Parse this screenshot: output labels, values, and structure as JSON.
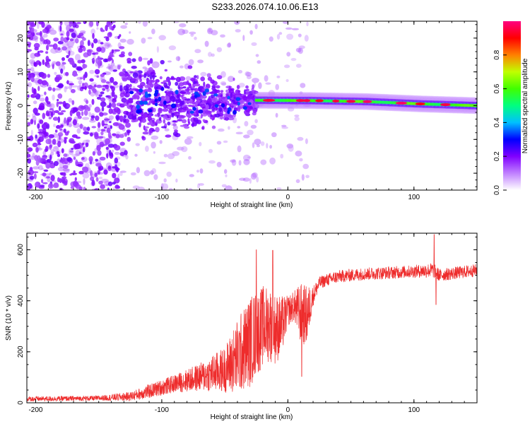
{
  "title": "S233.2026.074.10.06.E13",
  "colors": {
    "snr_line": "#ee2c2c",
    "axis": "#000000",
    "background": "#ffffff"
  },
  "chart_data": [
    {
      "type": "heatmap",
      "name": "spectrogram",
      "xlabel": "Height of straight line (km)",
      "ylabel": "Frequency (Hz)",
      "xlim": [
        -207,
        150
      ],
      "ylim": [
        -25,
        25
      ],
      "xticks": [
        -200,
        -100,
        0,
        100
      ],
      "xtick_labels": [
        "-200",
        "-100",
        "0",
        "100"
      ],
      "yticks": [
        -20,
        -10,
        0,
        10,
        20
      ],
      "ytick_labels": [
        "-20",
        "-10",
        "0",
        "10",
        "20"
      ],
      "colorbar": {
        "label": "Normalized spectral amplitude",
        "range": [
          0,
          1
        ],
        "ticks": [
          0,
          0.2,
          0.4,
          0.6,
          0.8
        ],
        "tick_labels": [
          "0.0",
          "0.2",
          "0.4",
          "0.6",
          "0.8"
        ],
        "colors": [
          "#ffffff",
          "#c080ff",
          "#8000ff",
          "#0000ff",
          "#00c0ff",
          "#00ff80",
          "#40ff00",
          "#c0ff00",
          "#ff8000",
          "#ff0000",
          "#ff0080"
        ]
      },
      "features": {
        "noise_region_x": [
          -207,
          -130
        ],
        "scatter_region_x": [
          -130,
          -25
        ],
        "carrier_region_x": [
          -25,
          150
        ],
        "carrier_freq_hz": [
          1.6,
          1.5,
          1.2,
          0.5,
          0.0
        ]
      }
    },
    {
      "type": "line",
      "name": "snr",
      "xlabel": "Height of straight line (km)",
      "ylabel": "SNR (10 * v/v)",
      "xlim": [
        -207,
        150
      ],
      "ylim": [
        0,
        665
      ],
      "xticks": [
        -200,
        -100,
        0,
        100
      ],
      "xtick_labels": [
        "-200",
        "-100",
        "0",
        "100"
      ],
      "yticks": [
        0,
        200,
        400,
        600
      ],
      "ytick_labels": [
        "0",
        "200",
        "400",
        "600"
      ],
      "envelope": {
        "x": [
          -207,
          -150,
          -125,
          -110,
          -90,
          -70,
          -50,
          -40,
          -30,
          -20,
          -15,
          -10,
          -5,
          0,
          5,
          10,
          15,
          20,
          25,
          30,
          40,
          60,
          80,
          100,
          115,
          120,
          150
        ],
        "mean": [
          15,
          18,
          25,
          45,
          75,
          100,
          130,
          180,
          240,
          300,
          310,
          290,
          300,
          360,
          380,
          350,
          340,
          420,
          470,
          480,
          495,
          505,
          510,
          515,
          520,
          500,
          520
        ],
        "amp": [
          10,
          10,
          18,
          28,
          35,
          55,
          90,
          150,
          180,
          160,
          150,
          140,
          120,
          60,
          60,
          120,
          120,
          40,
          25,
          25,
          25,
          25,
          25,
          25,
          30,
          25,
          25
        ]
      },
      "spikes": [
        {
          "x": 116,
          "y": 660
        },
        {
          "x": 117.5,
          "y": 385
        },
        {
          "x": -25,
          "y": 600
        },
        {
          "x": -12,
          "y": 598
        },
        {
          "x": 11,
          "y": 103
        }
      ]
    }
  ]
}
